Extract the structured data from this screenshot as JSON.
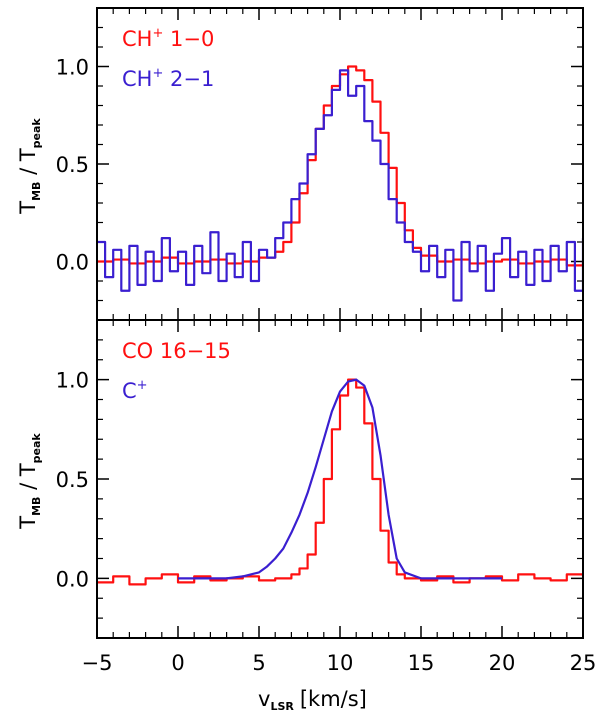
{
  "colors": {
    "red": "#ff1010",
    "blue": "#3a1fd0",
    "axis": "#000000"
  },
  "chart_data": {
    "type": "line",
    "shared_x_axis": {
      "label_main": "v",
      "label_sub": "LSR",
      "label_unit": "[km/s]",
      "xlim": [
        -5,
        25
      ],
      "ticks": [
        -5,
        0,
        5,
        10,
        15,
        20,
        25
      ],
      "tick_labels": [
        "−5",
        "0",
        "5",
        "10",
        "15",
        "20",
        "25"
      ]
    },
    "panels": [
      {
        "ylabel": {
          "t1": "T",
          "s1": "MB",
          "slash": "/",
          "t2": "T",
          "s2": "peak"
        },
        "ylim": [
          -0.3,
          1.3
        ],
        "yticks": [
          0.0,
          0.5,
          1.0
        ],
        "ytick_labels": [
          "0.0",
          "0.5",
          "1.0"
        ],
        "legend": [
          {
            "name": "CH",
            "sup": "+",
            "suffix": " 1−0",
            "color": "#ff1010"
          },
          {
            "name": "CH",
            "sup": "+",
            "suffix": " 2−1",
            "color": "#3a1fd0"
          }
        ],
        "series": [
          {
            "name": "CH+ 1-0",
            "color": "#ff1010",
            "style": "step",
            "x": [
              -5,
              -4,
              -3,
              -2,
              -1,
              0,
              1,
              2,
              3,
              4,
              5,
              6,
              6.5,
              7,
              7.5,
              8,
              8.5,
              9,
              9.5,
              10,
              10.5,
              11,
              11.5,
              12,
              12.5,
              13,
              13.5,
              14,
              14.5,
              15,
              16,
              17,
              18,
              19,
              20,
              21,
              22,
              23,
              24,
              25
            ],
            "values": [
              0.0,
              0.01,
              -0.01,
              0.0,
              0.02,
              -0.01,
              0.0,
              0.01,
              -0.01,
              0.0,
              0.02,
              0.05,
              0.1,
              0.2,
              0.35,
              0.52,
              0.68,
              0.8,
              0.9,
              0.96,
              1.0,
              0.98,
              0.93,
              0.82,
              0.66,
              0.48,
              0.3,
              0.16,
              0.07,
              0.03,
              0.0,
              0.01,
              -0.01,
              0.0,
              0.01,
              -0.01,
              0.0,
              0.01,
              -0.02,
              0.0
            ]
          },
          {
            "name": "CH+ 2-1",
            "color": "#3a1fd0",
            "style": "step",
            "x": [
              -5,
              -4.5,
              -4,
              -3.5,
              -3,
              -2.5,
              -2,
              -1.5,
              -1,
              -0.5,
              0,
              0.5,
              1,
              1.5,
              2,
              2.5,
              3,
              3.5,
              4,
              4.5,
              5,
              5.5,
              6,
              6.5,
              7,
              7.5,
              8,
              8.5,
              9,
              9.5,
              10,
              10.5,
              11,
              11.5,
              12,
              12.5,
              13,
              13.5,
              14,
              14.5,
              15,
              15.5,
              16,
              16.5,
              17,
              17.5,
              18,
              18.5,
              19,
              19.5,
              20,
              20.5,
              21,
              21.5,
              22,
              22.5,
              23,
              23.5,
              24,
              24.5,
              25
            ],
            "values": [
              0.1,
              -0.08,
              0.06,
              -0.15,
              0.08,
              -0.12,
              0.05,
              -0.1,
              0.12,
              -0.05,
              0.05,
              -0.12,
              0.08,
              -0.06,
              0.15,
              -0.1,
              0.04,
              -0.08,
              0.1,
              -0.1,
              0.06,
              0.02,
              0.12,
              0.2,
              0.32,
              0.4,
              0.55,
              0.68,
              0.75,
              0.88,
              0.98,
              0.85,
              0.9,
              0.72,
              0.62,
              0.5,
              0.32,
              0.2,
              0.1,
              0.05,
              -0.05,
              0.08,
              -0.08,
              0.06,
              -0.2,
              0.1,
              -0.05,
              0.08,
              -0.15,
              0.04,
              0.12,
              -0.08,
              0.05,
              -0.12,
              0.06,
              -0.1,
              0.08,
              -0.05,
              0.1,
              -0.15,
              0.12
            ]
          }
        ]
      },
      {
        "ylabel": {
          "t1": "T",
          "s1": "MB",
          "slash": "/",
          "t2": "T",
          "s2": "peak"
        },
        "ylim": [
          -0.3,
          1.3
        ],
        "yticks": [
          0.0,
          0.5,
          1.0
        ],
        "ytick_labels": [
          "0.0",
          "0.5",
          "1.0"
        ],
        "legend": [
          {
            "name": "CO 16−15",
            "sup": "",
            "suffix": "",
            "color": "#ff1010"
          },
          {
            "name": "C",
            "sup": "+",
            "suffix": "",
            "color": "#3a1fd0"
          }
        ],
        "series": [
          {
            "name": "CO 16-15",
            "color": "#ff1010",
            "style": "step",
            "x": [
              -5,
              -4,
              -3,
              -2,
              -1,
              0,
              1,
              2,
              3,
              4,
              5,
              6,
              7,
              7.5,
              8,
              8.5,
              9,
              9.5,
              10,
              10.5,
              11,
              11.5,
              12,
              12.5,
              13,
              13.5,
              14,
              15,
              16,
              17,
              18,
              19,
              20,
              21,
              22,
              23,
              24,
              25
            ],
            "values": [
              -0.02,
              0.01,
              -0.03,
              0.0,
              0.02,
              -0.02,
              0.01,
              -0.01,
              0.0,
              0.01,
              -0.01,
              0.0,
              0.02,
              0.05,
              0.12,
              0.28,
              0.5,
              0.75,
              0.92,
              1.0,
              0.96,
              0.78,
              0.5,
              0.24,
              0.08,
              0.02,
              0.0,
              -0.01,
              0.01,
              -0.02,
              0.0,
              0.01,
              -0.01,
              0.02,
              0.0,
              -0.01,
              0.02,
              0.01
            ]
          },
          {
            "name": "C+",
            "color": "#3a1fd0",
            "style": "line",
            "x": [
              0,
              1,
              2,
              3,
              4,
              5,
              5.5,
              6,
              6.5,
              7,
              7.5,
              8,
              8.5,
              9,
              9.5,
              10,
              10.5,
              11,
              11.5,
              12,
              12.5,
              13,
              13.5,
              14,
              15,
              16,
              17,
              18,
              19,
              20
            ],
            "values": [
              0.0,
              0.0,
              0.0,
              0.0,
              0.01,
              0.03,
              0.06,
              0.1,
              0.15,
              0.23,
              0.32,
              0.43,
              0.56,
              0.7,
              0.84,
              0.94,
              0.99,
              1.0,
              0.97,
              0.86,
              0.62,
              0.32,
              0.1,
              0.03,
              0.0,
              0.0,
              0.0,
              0.0,
              0.0,
              0.0
            ]
          }
        ]
      }
    ]
  }
}
